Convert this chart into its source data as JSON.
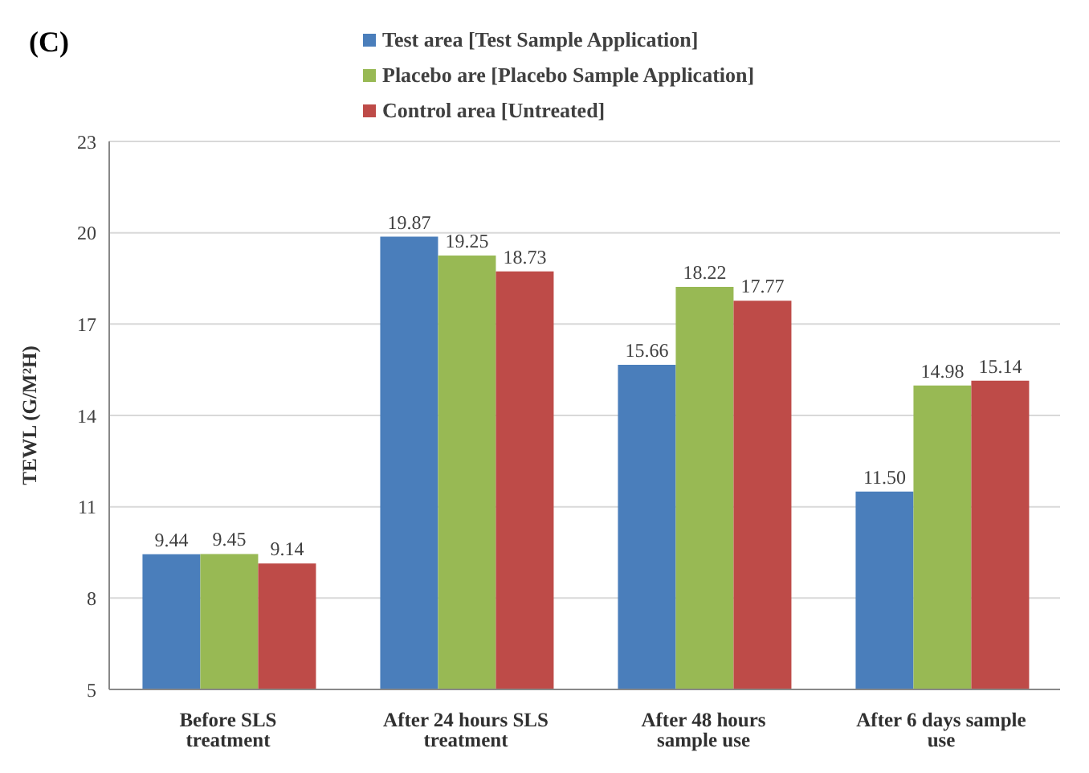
{
  "chart_data": {
    "type": "bar",
    "title": "(C)",
    "ylabel": "TEWL (G/M²H)",
    "categories": [
      "Before SLS treatment",
      "After 24 hours SLS treatment",
      "After 48 hours sample use",
      "After 6 days sample use"
    ],
    "series": [
      {
        "name": "Test area [Test Sample Application]",
        "color": "#4a7ebb",
        "values": [
          9.44,
          19.87,
          15.66,
          11.5
        ],
        "value_labels": [
          "9.44",
          "19.87",
          "15.66",
          "11.50"
        ]
      },
      {
        "name": "Placebo are [Placebo Sample Application]",
        "color": "#98b954",
        "values": [
          9.45,
          19.25,
          18.22,
          14.98
        ],
        "value_labels": [
          "9.45",
          "19.25",
          "18.22",
          "14.98"
        ]
      },
      {
        "name": "Control area [Untreated]",
        "color": "#be4b48",
        "values": [
          9.14,
          18.73,
          17.77,
          15.14
        ],
        "value_labels": [
          "9.14",
          "18.73",
          "17.77",
          "15.14"
        ]
      }
    ],
    "ylim": [
      5,
      23
    ],
    "yticks": [
      5,
      8,
      11,
      14,
      17,
      20,
      23
    ],
    "grid": "y",
    "legend": "top"
  }
}
